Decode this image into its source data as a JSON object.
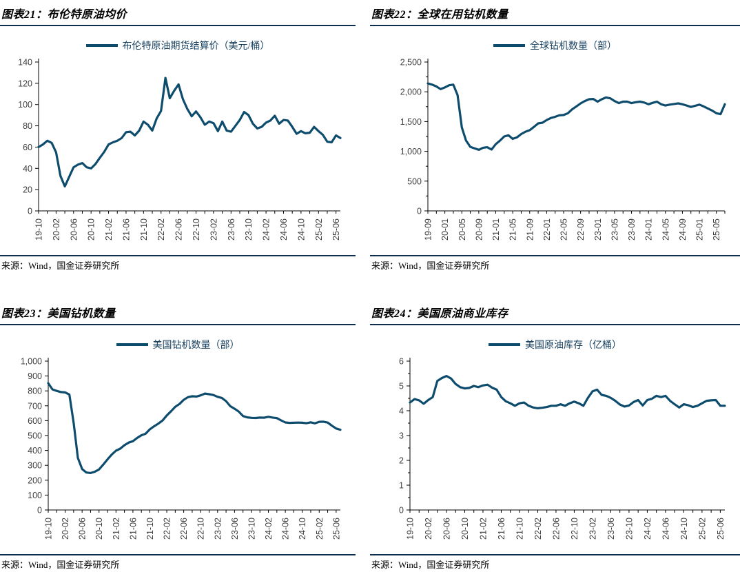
{
  "colors": {
    "series_line": "#0e4c6e",
    "rule": "#0d2e4e"
  },
  "chart_data": [
    {
      "type": "line",
      "title": "图表21：布伦特原油均价",
      "legend": "布伦特原油期货结算价（美元/桶）",
      "source": "来源：Wind，国金证券研究所",
      "color": "#0e4c6e",
      "ylim": [
        0,
        140
      ],
      "y_tick_values": [
        0,
        20,
        40,
        60,
        80,
        100,
        120,
        140
      ],
      "y_tick_labels": [
        "0",
        "20",
        "40",
        "60",
        "80",
        "100",
        "120",
        "140"
      ],
      "y_minor_step": null,
      "x_tick_labels": [
        "19-10",
        "20-02",
        "20-06",
        "20-10",
        "21-02",
        "21-06",
        "21-10",
        "22-02",
        "22-06",
        "22-10",
        "23-02",
        "23-06",
        "23-10",
        "24-02",
        "24-06",
        "24-10",
        "25-02",
        "25-06"
      ],
      "x_label_every": 4,
      "series": [
        {
          "name": "布伦特原油期货结算价（美元/桶）",
          "values": [
            60,
            62.5,
            66,
            64,
            55,
            33,
            23,
            32,
            41,
            43.5,
            45,
            41,
            40,
            44,
            50,
            55.5,
            62.5,
            64.5,
            66,
            68.5,
            74,
            74.5,
            71,
            75.5,
            84,
            81,
            75.5,
            87,
            94,
            125,
            106,
            113,
            119,
            105,
            96,
            89,
            93.5,
            88,
            81,
            84,
            82.5,
            75,
            84,
            75.5,
            74.5,
            80,
            85.5,
            93,
            90,
            82,
            77.5,
            79,
            83,
            85,
            89.5,
            82,
            85.5,
            85,
            79,
            72.5,
            75,
            73,
            73.5,
            79,
            75,
            71.5,
            65,
            64.5,
            71,
            68.5
          ]
        }
      ]
    },
    {
      "type": "line",
      "title": "图表22：全球在用钻机数量",
      "legend": "全球钻机数量（部）",
      "source": "来源：Wind，国金证券研究所",
      "color": "#0e4c6e",
      "ylim": [
        0,
        2500
      ],
      "y_tick_values": [
        0,
        500,
        1000,
        1500,
        2000,
        2500
      ],
      "y_tick_labels": [
        "0",
        "500",
        "1,000",
        "1,500",
        "2,000",
        "2,500"
      ],
      "y_minor_step": 250,
      "x_tick_labels": [
        "19-09",
        "20-01",
        "20-05",
        "20-09",
        "21-01",
        "21-05",
        "21-09",
        "22-01",
        "22-05",
        "22-09",
        "23-01",
        "23-05",
        "23-09",
        "24-01",
        "24-05",
        "24-09",
        "25-01",
        "25-05"
      ],
      "x_label_every": 4,
      "series": [
        {
          "name": "全球钻机数量（部）",
          "values": [
            2140,
            2120,
            2090,
            2045,
            2073,
            2110,
            2120,
            1945,
            1400,
            1180,
            1075,
            1050,
            1025,
            1060,
            1070,
            1030,
            1120,
            1180,
            1250,
            1270,
            1210,
            1235,
            1290,
            1330,
            1355,
            1410,
            1470,
            1480,
            1525,
            1560,
            1580,
            1605,
            1610,
            1640,
            1705,
            1755,
            1805,
            1845,
            1875,
            1880,
            1835,
            1875,
            1905,
            1890,
            1845,
            1810,
            1835,
            1835,
            1810,
            1825,
            1835,
            1820,
            1790,
            1815,
            1835,
            1790,
            1770,
            1785,
            1795,
            1805,
            1790,
            1770,
            1745,
            1765,
            1785,
            1755,
            1720,
            1685,
            1640,
            1625,
            1790
          ]
        }
      ]
    },
    {
      "type": "line",
      "title": "图表23：美国钻机数量",
      "legend": "美国钻机数量（部）",
      "source": "来源：Wind，国金证券研究所",
      "color": "#0e4c6e",
      "ylim": [
        0,
        1000
      ],
      "y_tick_values": [
        0,
        100,
        200,
        300,
        400,
        500,
        600,
        700,
        800,
        900,
        1000
      ],
      "y_tick_labels": [
        "0",
        "100",
        "200",
        "300",
        "400",
        "500",
        "600",
        "700",
        "800",
        "900",
        "1,000"
      ],
      "y_minor_step": null,
      "x_tick_labels": [
        "19-10",
        "20-02",
        "20-06",
        "20-10",
        "21-02",
        "21-06",
        "21-10",
        "22-02",
        "22-06",
        "22-10",
        "23-02",
        "23-06",
        "23-10",
        "24-02",
        "24-06",
        "24-10",
        "25-02",
        "25-06"
      ],
      "x_label_every": 4,
      "series": [
        {
          "name": "美国钻机数量（部）",
          "values": [
            852,
            810,
            800,
            792,
            790,
            775,
            585,
            350,
            275,
            252,
            248,
            257,
            272,
            305,
            340,
            372,
            398,
            412,
            435,
            453,
            462,
            484,
            502,
            512,
            542,
            562,
            580,
            601,
            635,
            663,
            693,
            712,
            740,
            758,
            764,
            762,
            770,
            782,
            778,
            772,
            760,
            753,
            731,
            697,
            680,
            661,
            631,
            622,
            619,
            618,
            621,
            620,
            626,
            621,
            617,
            602,
            588,
            585,
            586,
            587,
            586,
            583,
            589,
            582,
            592,
            593,
            587,
            566,
            547,
            539
          ]
        }
      ]
    },
    {
      "type": "line",
      "title": "图表24：美国原油商业库存",
      "legend": "美国原油库存（亿桶）",
      "source": "来源：Wind，国金证券研究所",
      "color": "#0e4c6e",
      "ylim": [
        0,
        6
      ],
      "y_tick_values": [
        0,
        1,
        2,
        3,
        4,
        5,
        6
      ],
      "y_tick_labels": [
        "0",
        "1",
        "2",
        "3",
        "4",
        "5",
        "6"
      ],
      "y_minor_step": 0.5,
      "x_tick_labels": [
        "19-10",
        "20-02",
        "20-06",
        "20-10",
        "21-02",
        "21-06",
        "21-10",
        "22-02",
        "22-06",
        "22-10",
        "23-02",
        "23-06",
        "23-10",
        "24-02",
        "24-06",
        "24-10",
        "25-02",
        "25-06"
      ],
      "x_label_every": 4,
      "series": [
        {
          "name": "美国原油库存（亿桶）",
          "values": [
            4.33,
            4.47,
            4.42,
            4.28,
            4.43,
            4.55,
            5.2,
            5.32,
            5.4,
            5.3,
            5.08,
            4.95,
            4.9,
            4.92,
            5.0,
            4.95,
            5.02,
            5.05,
            4.93,
            4.85,
            4.55,
            4.38,
            4.3,
            4.2,
            4.3,
            4.33,
            4.2,
            4.13,
            4.1,
            4.12,
            4.15,
            4.2,
            4.2,
            4.26,
            4.2,
            4.3,
            4.37,
            4.3,
            4.2,
            4.52,
            4.78,
            4.85,
            4.64,
            4.6,
            4.52,
            4.4,
            4.25,
            4.17,
            4.21,
            4.35,
            4.43,
            4.21,
            4.43,
            4.48,
            4.6,
            4.55,
            4.6,
            4.4,
            4.26,
            4.13,
            4.26,
            4.22,
            4.15,
            4.2,
            4.3,
            4.4,
            4.42,
            4.43,
            4.2,
            4.2
          ]
        }
      ]
    }
  ]
}
